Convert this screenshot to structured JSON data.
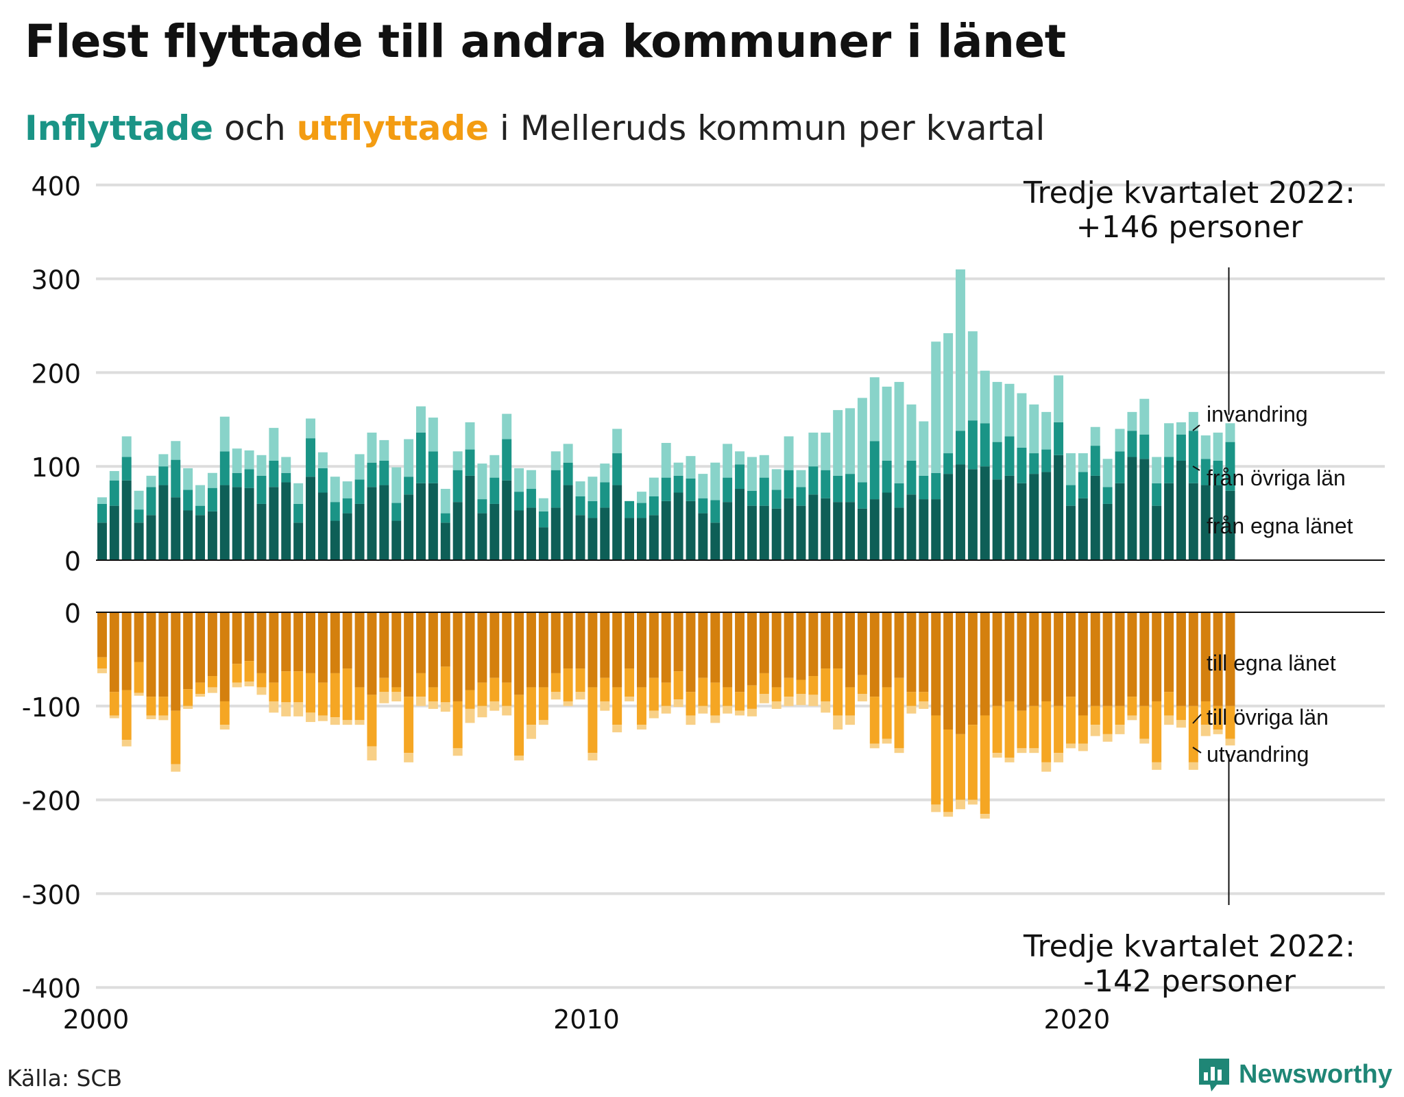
{
  "title": "Flest flyttade till andra kommuner i länet",
  "subtitle": {
    "part1": "Inflyttade",
    "part2": " och ",
    "part3": "utflyttade",
    "part4": " i Melleruds kommun per kvartal"
  },
  "annotation_top": {
    "line1": "Tredje kvartalet 2022:",
    "line2": "+146 personer"
  },
  "annotation_bottom": {
    "line1": "Tredje kvartalet 2022:",
    "line2": "-142 personer"
  },
  "source": "Källa: SCB",
  "brand": "Newsworthy",
  "colors": {
    "in_own": "#0e5f57",
    "in_other": "#1a9486",
    "in_abroad": "#88d3c9",
    "out_own": "#d4800e",
    "out_other": "#f5a623",
    "out_abroad": "#f8d087",
    "grid": "#dddddd",
    "brand": "#1f8676"
  },
  "chart_data": {
    "type": "bar",
    "stacked": true,
    "x_start": "2000 Q1",
    "x_ticks": [
      "2000",
      "2010",
      "2020"
    ],
    "top_panel": {
      "ylim": [
        0,
        400
      ],
      "yticks": [
        "0",
        "100",
        "200",
        "300",
        "400"
      ],
      "series": [
        {
          "name": "från egna länet",
          "values": [
            40,
            58,
            85,
            40,
            48,
            80,
            67,
            53,
            48,
            52,
            80,
            78,
            77,
            60,
            78,
            83,
            40,
            89,
            72,
            42,
            50,
            60,
            78,
            80,
            42,
            70,
            82,
            82,
            40,
            62,
            90,
            50,
            60,
            85,
            53,
            56,
            35,
            56,
            80,
            48,
            45,
            56,
            80,
            45,
            45,
            48,
            63,
            72,
            63,
            50,
            40,
            62,
            76,
            58,
            58,
            55,
            66,
            58,
            70,
            66,
            62,
            62,
            55,
            65,
            72,
            56,
            70,
            65,
            65,
            92,
            102,
            97,
            100,
            86,
            90,
            82,
            92,
            94,
            112,
            58,
            66,
            90,
            60,
            82,
            110,
            108,
            58,
            82,
            106,
            82,
            80,
            80,
            74
          ],
          "note": "values approximate"
        },
        {
          "name": "från övriga län",
          "values": [
            20,
            27,
            25,
            14,
            30,
            20,
            40,
            22,
            10,
            25,
            36,
            15,
            20,
            30,
            28,
            10,
            20,
            41,
            26,
            20,
            16,
            26,
            26,
            26,
            19,
            19,
            54,
            34,
            10,
            34,
            28,
            15,
            28,
            44,
            20,
            20,
            17,
            40,
            24,
            20,
            18,
            27,
            34,
            18,
            16,
            20,
            25,
            18,
            24,
            16,
            24,
            26,
            26,
            16,
            30,
            20,
            30,
            20,
            30,
            30,
            28,
            30,
            28,
            62,
            34,
            26,
            36,
            25,
            28,
            22,
            36,
            52,
            46,
            40,
            42,
            38,
            22,
            24,
            35,
            22,
            28,
            32,
            18,
            34,
            28,
            26,
            24,
            28,
            28,
            56,
            28,
            26,
            52
          ]
        },
        {
          "name": "invandring",
          "values": [
            7,
            10,
            22,
            20,
            12,
            13,
            20,
            23,
            22,
            16,
            37,
            26,
            20,
            22,
            35,
            17,
            22,
            21,
            17,
            27,
            18,
            27,
            32,
            22,
            38,
            40,
            28,
            36,
            26,
            20,
            29,
            38,
            24,
            27,
            25,
            20,
            14,
            20,
            20,
            16,
            26,
            20,
            26,
            0,
            12,
            20,
            37,
            14,
            24,
            26,
            40,
            36,
            14,
            36,
            24,
            22,
            36,
            18,
            36,
            40,
            70,
            70,
            90,
            68,
            79,
            108,
            60,
            58,
            140,
            128,
            172,
            95,
            56,
            64,
            56,
            58,
            52,
            40,
            50,
            34,
            20,
            20,
            30,
            24,
            20,
            38,
            28,
            36,
            13,
            20,
            25,
            30,
            20
          ]
        }
      ]
    },
    "bottom_panel": {
      "ylim": [
        -400,
        0
      ],
      "yticks": [
        "0",
        "-100",
        "-200",
        "-300",
        "-400"
      ],
      "series": [
        {
          "name": "till egna länet",
          "values": [
            -48,
            -85,
            -83,
            -53,
            -90,
            -90,
            -105,
            -82,
            -75,
            -68,
            -95,
            -55,
            -52,
            -65,
            -75,
            -63,
            -63,
            -65,
            -75,
            -65,
            -60,
            -80,
            -88,
            -70,
            -80,
            -90,
            -65,
            -80,
            -58,
            -95,
            -83,
            -75,
            -70,
            -75,
            -88,
            -80,
            -80,
            -65,
            -60,
            -60,
            -80,
            -70,
            -80,
            -60,
            -80,
            -70,
            -75,
            -63,
            -85,
            -70,
            -75,
            -80,
            -85,
            -78,
            -65,
            -80,
            -70,
            -72,
            -68,
            -60,
            -60,
            -80,
            -67,
            -90,
            -80,
            -70,
            -85,
            -85,
            -110,
            -125,
            -130,
            -120,
            -110,
            -100,
            -95,
            -105,
            -100,
            -95,
            -100,
            -90,
            -110,
            -100,
            -100,
            -100,
            -90,
            -100,
            -95,
            -85,
            -100,
            -100,
            -95,
            -100,
            -100
          ]
        },
        {
          "name": "till övriga län",
          "values": [
            -12,
            -25,
            -53,
            -33,
            -20,
            -20,
            -57,
            -18,
            -12,
            -12,
            -25,
            -20,
            -22,
            -15,
            -20,
            -33,
            -33,
            -42,
            -35,
            -47,
            -55,
            -35,
            -55,
            -15,
            -5,
            -60,
            -25,
            -15,
            -38,
            -50,
            -20,
            -25,
            -25,
            -25,
            -65,
            -40,
            -35,
            -20,
            -35,
            -25,
            -70,
            -25,
            -40,
            -30,
            -40,
            -35,
            -25,
            -30,
            -25,
            -30,
            -35,
            -20,
            -20,
            -25,
            -22,
            -15,
            -20,
            -15,
            -20,
            -35,
            -50,
            -30,
            -20,
            -50,
            -55,
            -75,
            -15,
            -10,
            -95,
            -88,
            -70,
            -80,
            -105,
            -50,
            -60,
            -40,
            -45,
            -65,
            -50,
            -50,
            -30,
            -20,
            -30,
            -20,
            -20,
            -35,
            -65,
            -25,
            -15,
            -60,
            -25,
            -25,
            -35
          ]
        },
        {
          "name": "utvandring",
          "values": [
            -5,
            -3,
            -7,
            -3,
            -4,
            -5,
            -8,
            -3,
            -3,
            -6,
            -5,
            -5,
            -5,
            -8,
            -12,
            -15,
            -15,
            -10,
            -6,
            -8,
            -5,
            -5,
            -15,
            -12,
            -10,
            -10,
            -10,
            -8,
            -10,
            -8,
            -15,
            -12,
            -10,
            -10,
            -5,
            -15,
            -5,
            -8,
            -5,
            -8,
            -8,
            -10,
            -8,
            -5,
            -5,
            -8,
            -8,
            -8,
            -10,
            -8,
            -8,
            -8,
            -5,
            -8,
            -10,
            -8,
            -10,
            -12,
            -12,
            -12,
            -15,
            -10,
            -8,
            -5,
            -5,
            -5,
            -8,
            -8,
            -8,
            -5,
            -10,
            -5,
            -5,
            -5,
            -5,
            -5,
            -5,
            -10,
            -10,
            -5,
            -8,
            -12,
            -8,
            -10,
            -5,
            -5,
            -8,
            -10,
            -8,
            -8,
            -12,
            -5,
            -7
          ]
        }
      ]
    }
  }
}
